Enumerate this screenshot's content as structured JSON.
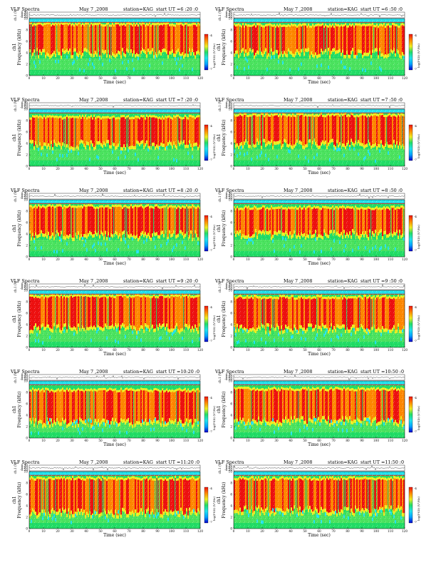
{
  "chart_data": {
    "type": "heatmap",
    "common": {
      "prefix": "VLF Spectra",
      "date": "May 7 ,2008",
      "station": "station=KAG",
      "start_prefix": "start  UT =",
      "xlabel": "Time (sec)",
      "ylabel_freq": "Frequency (kHz)",
      "ylabel_ch": "ch1",
      "ylabel_wave": "ch.1 (V)",
      "colorbar_label": "log(PSD) (V²/Hz)",
      "xlim": [
        0,
        120
      ],
      "xticks": [
        0,
        10,
        20,
        30,
        40,
        50,
        60,
        70,
        80,
        90,
        100,
        110,
        120
      ],
      "ylim_freq": [
        0,
        10
      ],
      "yticks_freq": [
        0,
        2,
        4,
        6,
        8,
        10
      ],
      "wave_ticks": [
        "0.50",
        "0.00",
        "-0.50"
      ],
      "colorbar_ticks": [
        "-4",
        "-7"
      ],
      "colorscale": [
        "#0000cc",
        "#00a0ff",
        "#22e3ee",
        "#22dd66",
        "#eeee22",
        "#ff8800",
        "#ee1111"
      ]
    },
    "panels": [
      {
        "start": "6 :20 :0",
        "band": [
          4.2,
          8.8
        ]
      },
      {
        "start": "6 :50 :0",
        "band": [
          4.2,
          8.6
        ]
      },
      {
        "start": "7 :20 :0",
        "band": [
          4.0,
          8.4
        ]
      },
      {
        "start": "7 :50 :0",
        "band": [
          4.2,
          8.8
        ]
      },
      {
        "start": "8 :20 :0",
        "band": [
          4.0,
          8.6
        ]
      },
      {
        "start": "8 :50 :0",
        "band": [
          4.2,
          8.4
        ]
      },
      {
        "start": "9 :20 :0",
        "band": [
          3.6,
          8.8
        ]
      },
      {
        "start": "9 :50 :0",
        "band": [
          3.6,
          8.6
        ]
      },
      {
        "start": "10:20 :0",
        "band": [
          3.0,
          8.2
        ]
      },
      {
        "start": "10:50 :0",
        "band": [
          3.2,
          8.4
        ]
      },
      {
        "start": "11:20 :0",
        "band": [
          3.0,
          8.6
        ]
      },
      {
        "start": "11:50 :0",
        "band": [
          3.4,
          8.6
        ]
      }
    ]
  }
}
